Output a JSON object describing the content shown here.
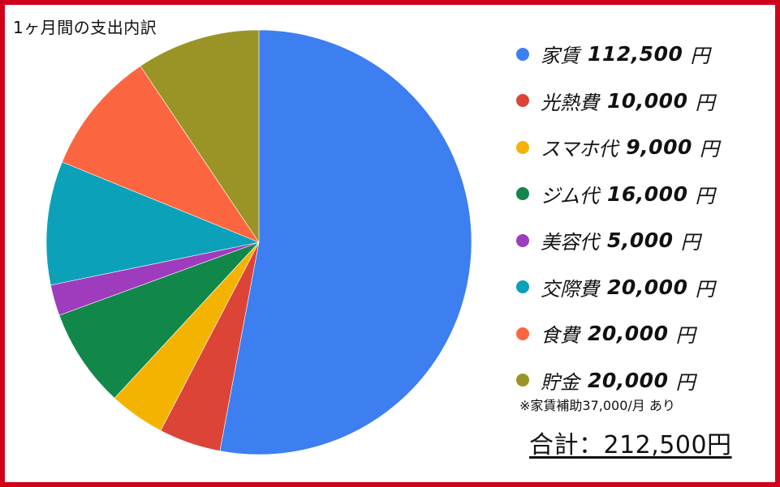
{
  "chart_data": {
    "type": "pie",
    "title": "1ヶ月間の支出内訳",
    "start_angle_deg": 0,
    "direction": "clockwise",
    "slices": [
      {
        "label": "家賃",
        "value": 112500,
        "amount_text": "112,500",
        "unit": "円",
        "color": "#3d7ef0"
      },
      {
        "label": "光熱費",
        "value": 10000,
        "amount_text": "10,000",
        "unit": "円",
        "color": "#dc4437"
      },
      {
        "label": "スマホ代",
        "value": 9000,
        "amount_text": "9,000",
        "unit": "円",
        "color": "#f4b300"
      },
      {
        "label": "ジム代",
        "value": 16000,
        "amount_text": "16,000",
        "unit": "円",
        "color": "#12874a"
      },
      {
        "label": "美容代",
        "value": 5000,
        "amount_text": "5,000",
        "unit": "円",
        "color": "#9e3cbd"
      },
      {
        "label": "交際費",
        "value": 20000,
        "amount_text": "20,000",
        "unit": "円",
        "color": "#0aa1b9"
      },
      {
        "label": "食費",
        "value": 20000,
        "amount_text": "20,000",
        "unit": "円",
        "color": "#fb6640"
      },
      {
        "label": "貯金",
        "value": 20000,
        "amount_text": "20,000",
        "unit": "円",
        "color": "#9a9426"
      }
    ],
    "legend": "right",
    "note": "※家賃補助37,000/月 あり",
    "total": "合計：212,500円"
  },
  "colors": {
    "frame": "#d0021b",
    "background": "#ffffff"
  }
}
